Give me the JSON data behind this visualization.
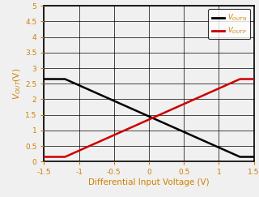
{
  "xlabel": "Differential Input Voltage (V)",
  "xlim": [
    -1.5,
    1.5
  ],
  "ylim": [
    0,
    5
  ],
  "xticks": [
    -1.5,
    -1.0,
    -0.5,
    0.0,
    0.5,
    1.0,
    1.5
  ],
  "xticklabels": [
    "-1.5",
    "-1",
    "-0.5",
    "0",
    "0.5",
    "1",
    "1.5"
  ],
  "yticks": [
    0,
    0.5,
    1.0,
    1.5,
    2.0,
    2.5,
    3.0,
    3.5,
    4.0,
    4.5,
    5.0
  ],
  "yticklabels": [
    "0",
    "0.5",
    "1",
    "1.5",
    "2",
    "2.5",
    "3",
    "3.5",
    "4",
    "4.5",
    "5"
  ],
  "voutn_color": "#000000",
  "voutp_color": "#cc0000",
  "background_color": "#f0f0f0",
  "plot_bg_color": "#f0f0f0",
  "grid_color": "#000000",
  "xlabel_color": "#d08000",
  "ylabel_color": "#d08000",
  "tick_color": "#d08000",
  "legend_text_color": "#d08000",
  "spine_color": "#000000",
  "figsize": [
    3.2,
    2.43
  ],
  "dpi": 100
}
